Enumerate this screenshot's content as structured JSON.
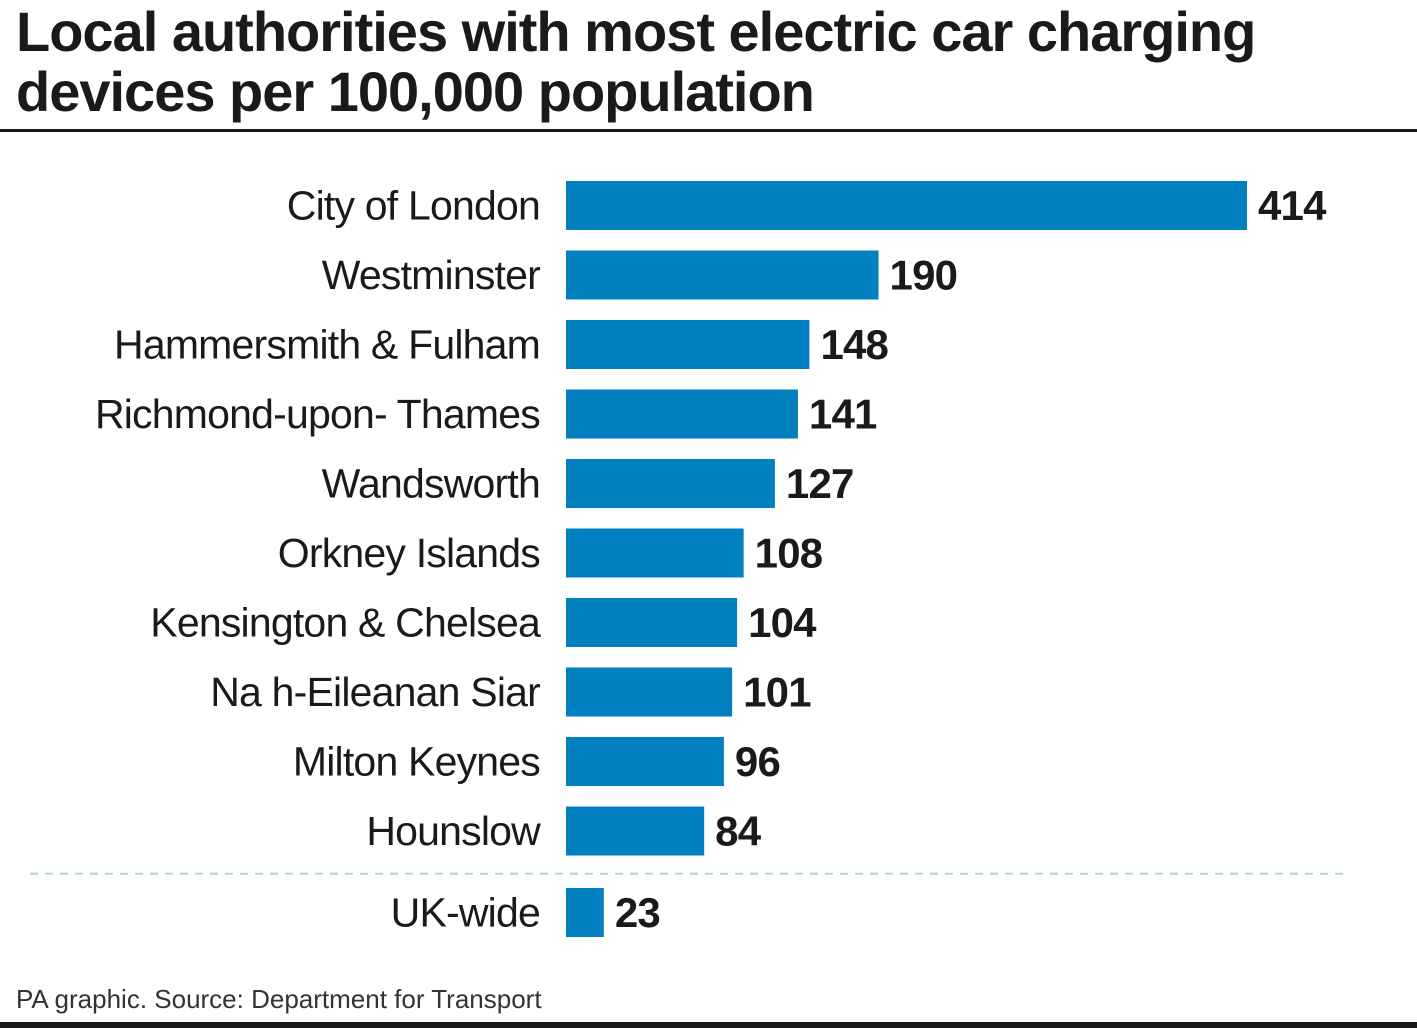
{
  "title": "Local authorities with most electric car charging devices per 100,000 population",
  "source": "PA graphic. Source: Department for Transport",
  "colors": {
    "bar": "#0080be",
    "text": "#1a1a1a",
    "separator": "#a8d4e6"
  },
  "chart_data": {
    "type": "bar",
    "orientation": "horizontal",
    "categories": [
      "City of London",
      "Westminster",
      "Hammersmith & Fulham",
      "Richmond-upon- Thames",
      "Wandsworth",
      "Orkney Islands",
      "Kensington & Chelsea",
      "Na h-Eileanan Siar",
      "Milton Keynes",
      "Hounslow",
      "UK-wide"
    ],
    "values": [
      414,
      190,
      148,
      141,
      127,
      108,
      104,
      101,
      96,
      84,
      23
    ],
    "data_labels": [
      "414",
      "190",
      "148",
      "141",
      "127",
      "108",
      "104",
      "101",
      "96",
      "84",
      "23"
    ],
    "separator_before": "UK-wide",
    "xlim": [
      0,
      414
    ],
    "grid": false,
    "legend": "none"
  }
}
